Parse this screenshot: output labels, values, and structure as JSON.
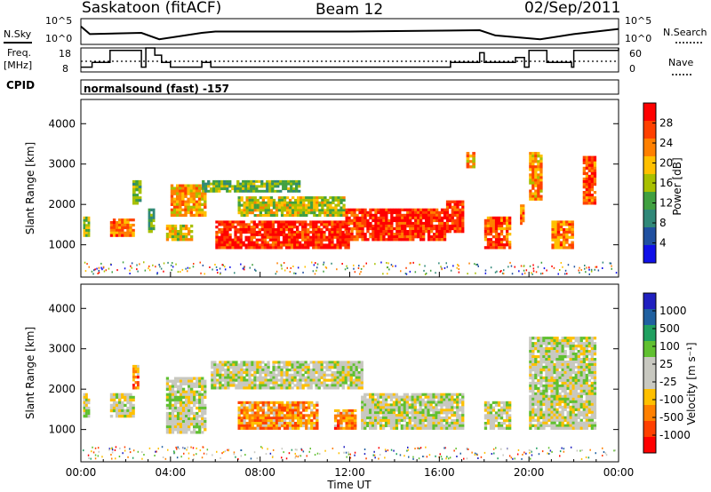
{
  "header": {
    "station": "Saskatoon (fitACF)",
    "beam": "Beam 12",
    "date": "02/Sep/2011"
  },
  "strip_labels": {
    "noise_sky": "N.Sky",
    "noise_search": "N.Search",
    "freq": "Freq.",
    "freq_units": "[MHz]",
    "nave": "Nave",
    "cpid": "CPID",
    "cpid_value": "normalsound (fast) -157"
  },
  "noise_axis_left": [
    "10^5",
    "10^0"
  ],
  "noise_axis_right": [
    "10^5",
    "10^0"
  ],
  "freq_axis": [
    "18",
    "8"
  ],
  "nave_axis": [
    "60",
    "0"
  ],
  "x_axis": {
    "label": "Time UT",
    "ticks": [
      "00:00",
      "04:00",
      "08:00",
      "12:00",
      "16:00",
      "20:00",
      "00:00"
    ]
  },
  "y_axis_label": "Slant Range [km]",
  "power_colorbar": {
    "label": "Power [dB]",
    "ticks": [
      "28",
      "24",
      "20",
      "16",
      "12",
      "8",
      "4"
    ],
    "colors": [
      "#ff0000",
      "#ff4000",
      "#ff8000",
      "#ffc000",
      "#a8c000",
      "#40a040",
      "#308878",
      "#2050a0",
      "#1010e8"
    ]
  },
  "velocity_colorbar": {
    "label": "Velocity [m s⁻¹]",
    "ticks": [
      "1000",
      "500",
      "100",
      "25",
      "-25",
      "-100",
      "-500",
      "-1000"
    ],
    "colors": [
      "#2020c0",
      "#2060a0",
      "#20a060",
      "#60c030",
      "#c8c8c0",
      "#c8c8c0",
      "#ffc000",
      "#ff8000",
      "#ff4000",
      "#ff0000"
    ]
  },
  "chart_data": [
    {
      "type": "heatmap",
      "title": "Power",
      "xlabel": "Time UT",
      "ylabel": "Slant Range [km]",
      "xlim": [
        0,
        24
      ],
      "ylim": [
        200,
        4600
      ],
      "y_ticks": [
        1000,
        2000,
        3000,
        4000
      ],
      "colorbar_label": "Power [dB]",
      "colorbar_range": [
        0,
        30
      ],
      "x_units": "hours UT",
      "regions": [
        {
          "t0": 0.1,
          "t1": 0.4,
          "r0": 1200,
          "r1": 1700,
          "value": 16
        },
        {
          "t0": 1.3,
          "t1": 2.4,
          "r0": 1200,
          "r1": 1650,
          "value": 22
        },
        {
          "t0": 2.3,
          "t1": 2.7,
          "r0": 2000,
          "r1": 2600,
          "value": 13
        },
        {
          "t0": 3.0,
          "t1": 3.3,
          "r0": 1300,
          "r1": 1900,
          "value": 12
        },
        {
          "t0": 3.8,
          "t1": 5.0,
          "r0": 1100,
          "r1": 1500,
          "value": 18
        },
        {
          "t0": 4.0,
          "t1": 5.6,
          "r0": 1700,
          "r1": 2500,
          "value": 20
        },
        {
          "t0": 5.4,
          "t1": 9.8,
          "r0": 2300,
          "r1": 2600,
          "value": 12
        },
        {
          "t0": 6.0,
          "t1": 12.0,
          "r0": 900,
          "r1": 1600,
          "value": 27
        },
        {
          "t0": 7.0,
          "t1": 11.8,
          "r0": 1700,
          "r1": 2200,
          "value": 16
        },
        {
          "t0": 11.8,
          "t1": 16.3,
          "r0": 1100,
          "r1": 1900,
          "value": 27
        },
        {
          "t0": 16.3,
          "t1": 17.1,
          "r0": 1300,
          "r1": 2100,
          "value": 26
        },
        {
          "t0": 17.2,
          "t1": 17.6,
          "r0": 2900,
          "r1": 3300,
          "value": 20
        },
        {
          "t0": 18.0,
          "t1": 19.2,
          "r0": 900,
          "r1": 1700,
          "value": 24
        },
        {
          "t0": 19.6,
          "t1": 19.8,
          "r0": 1500,
          "r1": 2000,
          "value": 22
        },
        {
          "t0": 20.0,
          "t1": 20.6,
          "r0": 2100,
          "r1": 3300,
          "value": 21
        },
        {
          "t0": 21.0,
          "t1": 22.0,
          "r0": 900,
          "r1": 1600,
          "value": 22
        },
        {
          "t0": 22.4,
          "t1": 23.0,
          "r0": 2000,
          "r1": 3200,
          "value": 24
        }
      ]
    },
    {
      "type": "heatmap",
      "title": "Velocity",
      "xlabel": "Time UT",
      "ylabel": "Slant Range [km]",
      "xlim": [
        0,
        24
      ],
      "ylim": [
        200,
        4600
      ],
      "y_ticks": [
        1000,
        2000,
        3000,
        4000
      ],
      "colorbar_label": "Velocity [m s⁻¹]",
      "colorbar_range": [
        -1000,
        1000
      ],
      "x_units": "hours UT",
      "regions": [
        {
          "t0": 0.1,
          "t1": 0.4,
          "r0": 1300,
          "r1": 1900,
          "value": 0
        },
        {
          "t0": 1.3,
          "t1": 2.4,
          "r0": 1300,
          "r1": 1900,
          "value": 0
        },
        {
          "t0": 2.3,
          "t1": 2.6,
          "r0": 2000,
          "r1": 2600,
          "value": -300
        },
        {
          "t0": 3.8,
          "t1": 5.6,
          "r0": 900,
          "r1": 2300,
          "value": 0
        },
        {
          "t0": 5.8,
          "t1": 12.6,
          "r0": 2000,
          "r1": 2700,
          "value": 0
        },
        {
          "t0": 7.0,
          "t1": 10.6,
          "r0": 1000,
          "r1": 1700,
          "value": -250
        },
        {
          "t0": 11.3,
          "t1": 12.3,
          "r0": 1000,
          "r1": 1500,
          "value": -300
        },
        {
          "t0": 12.5,
          "t1": 17.1,
          "r0": 1000,
          "r1": 1900,
          "value": 0
        },
        {
          "t0": 18.0,
          "t1": 19.2,
          "r0": 1000,
          "r1": 1700,
          "value": 0
        },
        {
          "t0": 20.0,
          "t1": 23.0,
          "r0": 1000,
          "r1": 3300,
          "value": 0
        }
      ]
    }
  ],
  "noise_sky_series": [
    {
      "t": 0,
      "v": 0.7
    },
    {
      "t": 0.4,
      "v": 0.4
    },
    {
      "t": 2.7,
      "v": 0.45
    },
    {
      "t": 3.5,
      "v": 0.2
    },
    {
      "t": 5.4,
      "v": 0.45
    },
    {
      "t": 6,
      "v": 0.5
    },
    {
      "t": 12,
      "v": 0.5
    },
    {
      "t": 17.8,
      "v": 0.55
    },
    {
      "t": 18.5,
      "v": 0.35
    },
    {
      "t": 20.5,
      "v": 0.2
    },
    {
      "t": 22,
      "v": 0.4
    },
    {
      "t": 24,
      "v": 0.6
    }
  ],
  "freq_steps": [
    {
      "t": 0,
      "v": 10
    },
    {
      "t": 0.5,
      "v": 12
    },
    {
      "t": 1.3,
      "v": 17
    },
    {
      "t": 2.7,
      "v": 10
    },
    {
      "t": 2.9,
      "v": 18
    },
    {
      "t": 3.3,
      "v": 15
    },
    {
      "t": 3.6,
      "v": 12
    },
    {
      "t": 4.0,
      "v": 10
    },
    {
      "t": 5.4,
      "v": 12
    },
    {
      "t": 5.8,
      "v": 10
    },
    {
      "t": 16.5,
      "v": 12
    },
    {
      "t": 17.8,
      "v": 16
    },
    {
      "t": 18.0,
      "v": 12
    },
    {
      "t": 19.4,
      "v": 14
    },
    {
      "t": 19.8,
      "v": 10
    },
    {
      "t": 20.0,
      "v": 17
    },
    {
      "t": 20.8,
      "v": 12
    },
    {
      "t": 21.9,
      "v": 10
    },
    {
      "t": 22.0,
      "v": 17
    },
    {
      "t": 24,
      "v": 18
    }
  ]
}
